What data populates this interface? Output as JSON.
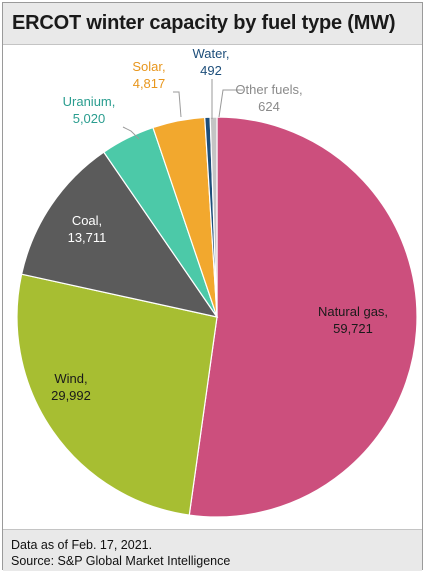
{
  "chart_data": {
    "type": "pie",
    "title": "ERCOT winter capacity by fuel type (MW)",
    "slices": [
      {
        "name": "Natural gas",
        "label": "Natural gas,",
        "value_label": "59,721",
        "value": 59721,
        "color": "#cc4f7d",
        "text_color": "#1a1a1a"
      },
      {
        "name": "Wind",
        "label": "Wind,",
        "value_label": "29,992",
        "value": 29992,
        "color": "#a7be32",
        "text_color": "#1a1a1a"
      },
      {
        "name": "Coal",
        "label": "Coal,",
        "value_label": "13,711",
        "value": 13711,
        "color": "#5b5b5b",
        "text_color": "#ffffff"
      },
      {
        "name": "Uranium",
        "label": "Uranium,",
        "value_label": "5,020",
        "value": 5020,
        "color": "#4cc9a8",
        "text_color": "#2a9d8f"
      },
      {
        "name": "Solar",
        "label": "Solar,",
        "value_label": "4,817",
        "value": 4817,
        "color": "#f2a82e",
        "text_color": "#e8961c"
      },
      {
        "name": "Water",
        "label": "Water,",
        "value_label": "492",
        "value": 492,
        "color": "#1d4e7a",
        "text_color": "#1d4e7a"
      },
      {
        "name": "Other fuels",
        "label": "Other fuels,",
        "value_label": "624",
        "value": 624,
        "color": "#c4c4c4",
        "text_color": "#8a8a8a"
      }
    ]
  },
  "footer": {
    "note": "Data as of Feb. 17, 2021.",
    "source": "Source: S&P Global Market Intelligence"
  }
}
